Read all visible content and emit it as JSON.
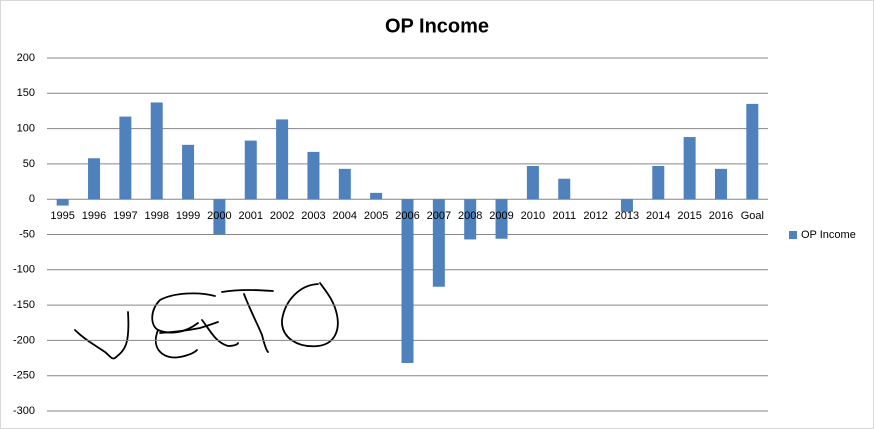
{
  "chart_data": {
    "type": "bar",
    "title": "OP Income",
    "categories": [
      "1995",
      "1996",
      "1997",
      "1998",
      "1999",
      "2000",
      "2001",
      "2002",
      "2003",
      "2004",
      "2005",
      "2006",
      "2007",
      "2008",
      "2009",
      "2010",
      "2011",
      "2012",
      "2013",
      "2014",
      "2015",
      "2016",
      "Goal"
    ],
    "series": [
      {
        "name": "OP Income",
        "color": "#4f81bd",
        "values": [
          -9,
          58,
          117,
          137,
          77,
          -50,
          83,
          113,
          67,
          43,
          9,
          -232,
          -124,
          -57,
          -56,
          47,
          29,
          0,
          -18,
          47,
          88,
          43,
          135
        ]
      }
    ],
    "ylim": [
      -300,
      200
    ],
    "yticks": [
      -300,
      -250,
      -200,
      -150,
      -100,
      -50,
      0,
      50,
      100,
      150,
      200
    ],
    "grid": true,
    "legend": "right"
  }
}
